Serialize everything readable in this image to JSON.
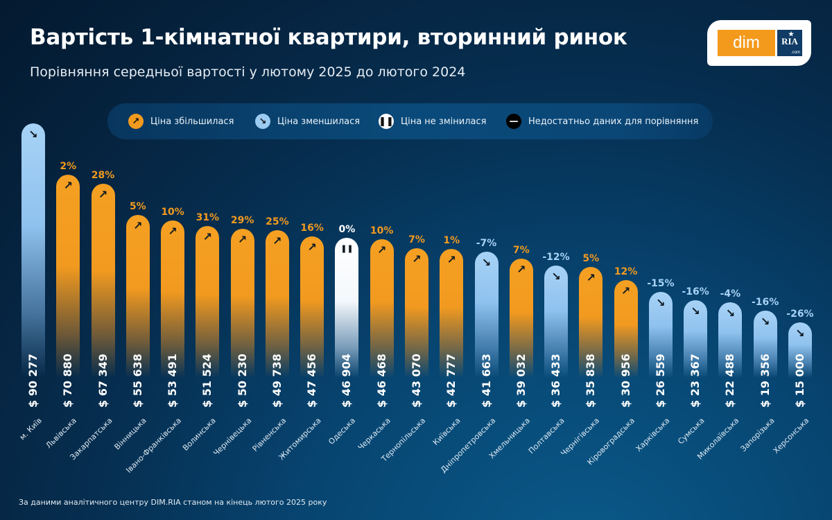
{
  "header": {
    "title": "Вартість 1-кімнатної квартири, вторинний ринок",
    "subtitle": "Порівняння середньої вартості у лютому 2025 до лютого 2024"
  },
  "logo": {
    "left_text": "dim",
    "right_text": "RIA",
    "right_sub": ".com"
  },
  "legend": {
    "items": [
      {
        "label": "Ціна збільшилася",
        "icon": "arrow-up-right-icon",
        "color": "#f29a1f"
      },
      {
        "label": "Ціна зменшилася",
        "icon": "arrow-down-right-icon",
        "color": "#9ccbf2"
      },
      {
        "label": "Ціна не змінилася",
        "icon": "pause-icon",
        "color": "#ffffff"
      },
      {
        "label": "Недостатньо даних для порівняння",
        "icon": "minus-icon",
        "color": "#000000"
      }
    ]
  },
  "colors": {
    "up": "#f29a1f",
    "down": "#9ccbf2",
    "same": "#ffffff",
    "up_text": "#f29a1f",
    "down_text": "#a7d2f6",
    "same_text": "#ffffff"
  },
  "chart_data": {
    "type": "bar",
    "title": "Вартість 1-кімнатної квартири, вторинний ринок",
    "subtitle": "Порівняння середньої вартості у лютому 2025 до лютого 2024",
    "xlabel": "",
    "ylabel": "",
    "ylim": [
      0,
      90277
    ],
    "grid": false,
    "legend_position": "top",
    "categories": [
      "м. Київ",
      "Львівська",
      "Закарпатська",
      "Вінницька",
      "Івано-Франківська",
      "Волинська",
      "Чернівецька",
      "Рівненська",
      "Житомирська",
      "Одеська",
      "Черкаська",
      "Тернопільська",
      "Київська",
      "Дніпропетровська",
      "Хмельницька",
      "Полтавська",
      "Чернігівська",
      "Кіровоградська",
      "Харківська",
      "Сумська",
      "Миколаївська",
      "Запорізька",
      "Херсонська"
    ],
    "values": [
      90277,
      70880,
      67349,
      55638,
      53491,
      51524,
      50230,
      49738,
      47456,
      46904,
      46468,
      43070,
      42777,
      41663,
      39032,
      36433,
      35838,
      30956,
      26559,
      23367,
      22488,
      19356,
      15000
    ],
    "price_labels": [
      "$ 90 277",
      "$ 70 880",
      "$ 67 349",
      "$ 55 638",
      "$ 53 491",
      "$ 51 524",
      "$ 50 230",
      "$ 49 738",
      "$ 47 456",
      "$ 46 904",
      "$ 46 468",
      "$ 43 070",
      "$ 42 777",
      "$ 41 663",
      "$ 39 032",
      "$ 36 433",
      "$ 35 838",
      "$ 30 956",
      "$ 26 559",
      "$ 23 367",
      "$ 22 488",
      "$ 19 356",
      "$ 15 000"
    ],
    "change_labels": [
      "",
      "2%",
      "28%",
      "5%",
      "10%",
      "31%",
      "29%",
      "25%",
      "16%",
      "0%",
      "10%",
      "7%",
      "1%",
      "-7%",
      "7%",
      "-12%",
      "5%",
      "12%",
      "-15%",
      "-16%",
      "-4%",
      "-16%",
      "-26%"
    ],
    "trend": [
      "down",
      "up",
      "up",
      "up",
      "up",
      "up",
      "up",
      "up",
      "up",
      "same",
      "up",
      "up",
      "up",
      "down",
      "up",
      "down",
      "up",
      "up",
      "down",
      "down",
      "down",
      "down",
      "down"
    ]
  },
  "footer": {
    "note": "За даними аналітичного центру DIM.RIA станом на кінець лютого 2025 року"
  }
}
